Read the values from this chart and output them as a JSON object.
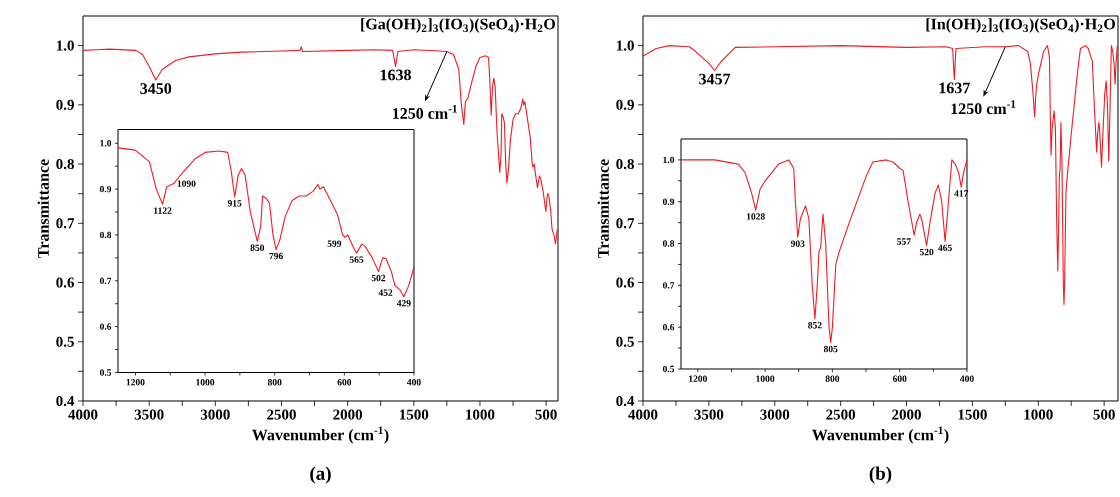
{
  "chart_data": [
    {
      "type": "line",
      "title": "[Ga(OH)$_{2}$]$_{3}$(IO$_{3}$)(SeO$_{4}$)·H$_{2}$O",
      "xlabel": "Wavenumber (cm$^{-1}$)",
      "ylabel": "Transmittance",
      "xlim": [
        4000,
        410
      ],
      "ylim": [
        0.4,
        1.05
      ],
      "xticks": [
        4000,
        {
          "value": 3750,
          "label": null
        },
        3500,
        {
          "value": 3250,
          "label": null
        },
        3000,
        {
          "value": 2750,
          "label": null
        },
        2500,
        {
          "value": 2250,
          "label": null
        },
        2000,
        {
          "value": 1750,
          "label": null
        },
        1500,
        {
          "value": 1250,
          "label": null
        },
        1000,
        {
          "value": 750,
          "label": null
        },
        500
      ],
      "yticks": [
        0.4,
        {
          "value": 0.45,
          "label": null
        },
        0.5,
        {
          "value": 0.55,
          "label": null
        },
        0.6,
        {
          "value": 0.65,
          "label": null
        },
        0.7,
        {
          "value": 0.75,
          "label": null
        },
        0.8,
        {
          "value": 0.85,
          "label": null
        },
        0.9,
        {
          "value": 0.95,
          "label": null
        },
        {
          "value": 1.0,
          "label": "1.0"
        }
      ],
      "series": [
        {
          "color": "#ee1c25",
          "x": [
            4000,
            3900,
            3800,
            3700,
            3600,
            3550,
            3500,
            3450,
            3400,
            3300,
            3200,
            3000,
            2800,
            2500,
            2360,
            2350,
            2340,
            2000,
            1800,
            1660,
            1638,
            1620,
            1500,
            1300,
            1250,
            1200,
            1160,
            1140,
            1122,
            1110,
            1090,
            1060,
            1030,
            1000,
            960,
            935,
            925,
            915,
            905,
            895,
            885,
            870,
            850,
            840,
            835,
            825,
            815,
            805,
            796,
            785,
            770,
            750,
            730,
            710,
            690,
            676,
            670,
            660,
            640,
            620,
            605,
            599,
            590,
            575,
            565,
            550,
            540,
            520,
            502,
            490,
            480,
            465,
            455,
            452,
            440,
            429,
            415
          ],
          "values": [
            0.992,
            0.993,
            0.994,
            0.993,
            0.992,
            0.985,
            0.965,
            0.942,
            0.96,
            0.975,
            0.981,
            0.986,
            0.989,
            0.991,
            0.992,
            0.998,
            0.99,
            0.992,
            0.993,
            0.992,
            0.965,
            0.99,
            0.993,
            0.991,
            0.99,
            0.985,
            0.96,
            0.9,
            0.867,
            0.905,
            0.912,
            0.94,
            0.965,
            0.98,
            0.983,
            0.98,
            0.94,
            0.883,
            0.93,
            0.945,
            0.93,
            0.85,
            0.786,
            0.82,
            0.885,
            0.88,
            0.87,
            0.8,
            0.768,
            0.79,
            0.84,
            0.875,
            0.885,
            0.885,
            0.895,
            0.91,
            0.9,
            0.905,
            0.875,
            0.845,
            0.8,
            0.795,
            0.8,
            0.775,
            0.76,
            0.78,
            0.775,
            0.75,
            0.72,
            0.75,
            0.748,
            0.72,
            0.69,
            0.688,
            0.68,
            0.665,
            0.69
          ]
        }
      ],
      "annotations": [
        {
          "text": "3450",
          "x": 3450,
          "y": 0.942
        },
        {
          "text": "1638",
          "x": 1638,
          "y": 0.965
        },
        {
          "text": "1250 cm$^{-1}$",
          "x": 1250,
          "y": 0.99
        },
        "(a)"
      ]
    },
    {
      "type": "line",
      "xlim": [
        1250,
        400
      ],
      "ylim": [
        0.5,
        1.03
      ],
      "xticks": [
        1200,
        {
          "value": 1100,
          "label": null
        },
        1000,
        {
          "value": 900,
          "label": null
        },
        800,
        {
          "value": 700,
          "label": null
        },
        600,
        {
          "value": 500,
          "label": null
        },
        400
      ],
      "yticks": [
        0.5,
        {
          "value": 0.55,
          "label": null
        },
        0.6,
        {
          "value": 0.65,
          "label": null
        },
        0.7,
        {
          "value": 0.75,
          "label": null
        },
        0.8,
        {
          "value": 0.85,
          "label": null
        },
        0.9,
        {
          "value": 0.95,
          "label": null
        },
        {
          "value": 1.0,
          "label": "1.0"
        }
      ],
      "series": [
        {
          "color": "#ee1c25",
          "x": [
            1250,
            1200,
            1160,
            1140,
            1122,
            1110,
            1090,
            1060,
            1030,
            1000,
            960,
            935,
            925,
            915,
            905,
            895,
            885,
            870,
            850,
            840,
            835,
            825,
            815,
            805,
            796,
            785,
            770,
            750,
            730,
            710,
            690,
            676,
            670,
            660,
            640,
            620,
            605,
            599,
            590,
            575,
            565,
            550,
            540,
            520,
            502,
            490,
            480,
            465,
            455,
            452,
            440,
            429,
            415,
            400
          ],
          "values": [
            0.99,
            0.985,
            0.96,
            0.9,
            0.867,
            0.905,
            0.912,
            0.94,
            0.965,
            0.98,
            0.983,
            0.98,
            0.94,
            0.883,
            0.93,
            0.945,
            0.93,
            0.85,
            0.786,
            0.82,
            0.885,
            0.88,
            0.87,
            0.8,
            0.768,
            0.79,
            0.84,
            0.875,
            0.885,
            0.885,
            0.895,
            0.91,
            0.9,
            0.905,
            0.875,
            0.845,
            0.8,
            0.795,
            0.8,
            0.775,
            0.76,
            0.78,
            0.775,
            0.75,
            0.72,
            0.75,
            0.748,
            0.72,
            0.69,
            0.688,
            0.68,
            0.665,
            0.69,
            0.73
          ]
        }
      ],
      "annotations": [
        {
          "text": "1122",
          "x": 1122,
          "y": 0.867
        },
        {
          "text": "1090",
          "x": 1090,
          "y": 0.912
        },
        {
          "text": "915",
          "x": 915,
          "y": 0.883
        },
        {
          "text": "850",
          "x": 850,
          "y": 0.786
        },
        {
          "text": "796",
          "x": 796,
          "y": 0.768
        },
        {
          "text": "599",
          "x": 599,
          "y": 0.795
        },
        {
          "text": "565",
          "x": 565,
          "y": 0.76
        },
        {
          "text": "502",
          "x": 502,
          "y": 0.72
        },
        {
          "text": "452",
          "x": 452,
          "y": 0.688
        },
        {
          "text": "429",
          "x": 429,
          "y": 0.665
        }
      ]
    },
    {
      "type": "line",
      "title": "[In(OH)$_{2}$]$_{3}$(IO$_{3}$)(SeO$_{4}$)·H$_{2}$O",
      "xlabel": "Wavenumber (cm$^{-1}$)",
      "ylabel": "Transmittance",
      "xlim": [
        4000,
        395
      ],
      "ylim": [
        0.4,
        1.05
      ],
      "xticks": [
        4000,
        {
          "value": 3750,
          "label": null
        },
        3500,
        {
          "value": 3250,
          "label": null
        },
        3000,
        {
          "value": 2750,
          "label": null
        },
        2500,
        {
          "value": 2250,
          "label": null
        },
        2000,
        {
          "value": 1750,
          "label": null
        },
        1500,
        {
          "value": 1250,
          "label": null
        },
        1000,
        {
          "value": 750,
          "label": null
        },
        500
      ],
      "yticks": [
        0.4,
        {
          "value": 0.45,
          "label": null
        },
        0.5,
        {
          "value": 0.55,
          "label": null
        },
        0.6,
        {
          "value": 0.65,
          "label": null
        },
        0.7,
        {
          "value": 0.75,
          "label": null
        },
        0.8,
        {
          "value": 0.85,
          "label": null
        },
        0.9,
        {
          "value": 0.95,
          "label": null
        },
        {
          "value": 1.0,
          "label": "1.0"
        }
      ],
      "series": [
        {
          "color": "#ee1c25",
          "x": [
            4000,
            3900,
            3800,
            3650,
            3600,
            3500,
            3457,
            3400,
            3300,
            3000,
            2500,
            2000,
            1700,
            1650,
            1637,
            1625,
            1400,
            1250,
            1150,
            1080,
            1060,
            1040,
            1028,
            1015,
            1000,
            980,
            960,
            930,
            915,
            910,
            903,
            895,
            880,
            870,
            860,
            852,
            845,
            840,
            835,
            828,
            820,
            810,
            805,
            800,
            790,
            780,
            750,
            700,
            680,
            640,
            620,
            600,
            590,
            575,
            557,
            550,
            540,
            535,
            520,
            510,
            495,
            485,
            475,
            465,
            455,
            445,
            435,
            425,
            417,
            410,
            400
          ],
          "values": [
            0.982,
            0.995,
            1.0,
            0.998,
            0.99,
            0.97,
            0.958,
            0.975,
            0.997,
            0.998,
            1.0,
            0.997,
            0.998,
            0.995,
            0.943,
            0.995,
            0.998,
            0.998,
            1.0,
            0.99,
            0.97,
            0.92,
            0.88,
            0.93,
            0.95,
            0.97,
            0.99,
            1.0,
            0.98,
            0.9,
            0.815,
            0.86,
            0.89,
            0.86,
            0.7,
            0.62,
            0.7,
            0.78,
            0.79,
            0.87,
            0.8,
            0.6,
            0.563,
            0.6,
            0.75,
            0.78,
            0.85,
            0.96,
            0.995,
            1.0,
            0.995,
            0.98,
            0.975,
            0.9,
            0.82,
            0.85,
            0.87,
            0.86,
            0.795,
            0.85,
            0.92,
            0.94,
            0.9,
            0.805,
            0.9,
            1.0,
            0.99,
            0.97,
            0.935,
            0.97,
            1.0
          ]
        }
      ],
      "annotations": [
        {
          "text": "3457",
          "x": 3457,
          "y": 0.958
        },
        {
          "text": "1637",
          "x": 1637,
          "y": 0.943
        },
        {
          "text": "1250 cm$^{-1}$",
          "x": 1250,
          "y": 0.998
        },
        "(b)"
      ]
    },
    {
      "type": "line",
      "xlim": [
        1250,
        400
      ],
      "ylim": [
        0.5,
        1.05
      ],
      "xticks": [
        1200,
        {
          "value": 1100,
          "label": null
        },
        1000,
        {
          "value": 900,
          "label": null
        },
        800,
        {
          "value": 700,
          "label": null
        },
        600,
        {
          "value": 500,
          "label": null
        },
        400
      ],
      "yticks": [
        0.5,
        {
          "value": 0.55,
          "label": null
        },
        0.6,
        {
          "value": 0.65,
          "label": null
        },
        0.7,
        {
          "value": 0.75,
          "label": null
        },
        0.8,
        {
          "value": 0.85,
          "label": null
        },
        0.9,
        {
          "value": 0.95,
          "label": null
        },
        {
          "value": 1.0,
          "label": "1.0"
        }
      ],
      "series": [
        {
          "color": "#ee1c25",
          "x": [
            1250,
            1150,
            1080,
            1060,
            1040,
            1028,
            1015,
            1000,
            980,
            960,
            930,
            915,
            910,
            903,
            895,
            880,
            870,
            860,
            852,
            845,
            840,
            835,
            828,
            820,
            810,
            805,
            800,
            790,
            780,
            750,
            700,
            680,
            640,
            620,
            600,
            590,
            575,
            557,
            550,
            540,
            535,
            520,
            510,
            495,
            485,
            475,
            465,
            455,
            445,
            435,
            425,
            417,
            410,
            400
          ],
          "values": [
            1.0,
            1.0,
            0.99,
            0.97,
            0.92,
            0.88,
            0.93,
            0.95,
            0.97,
            0.99,
            1.0,
            0.98,
            0.9,
            0.815,
            0.86,
            0.89,
            0.86,
            0.7,
            0.62,
            0.7,
            0.78,
            0.79,
            0.87,
            0.8,
            0.6,
            0.563,
            0.6,
            0.75,
            0.78,
            0.85,
            0.96,
            0.995,
            1.0,
            0.995,
            0.98,
            0.975,
            0.9,
            0.82,
            0.85,
            0.87,
            0.86,
            0.795,
            0.85,
            0.92,
            0.94,
            0.9,
            0.805,
            0.9,
            1.0,
            0.99,
            0.97,
            0.935,
            0.97,
            1.0
          ]
        }
      ],
      "annotations": [
        {
          "text": "1028",
          "x": 1028,
          "y": 0.88
        },
        {
          "text": "903",
          "x": 903,
          "y": 0.815
        },
        {
          "text": "852",
          "x": 852,
          "y": 0.62
        },
        {
          "text": "805",
          "x": 805,
          "y": 0.563
        },
        {
          "text": "557",
          "x": 557,
          "y": 0.82
        },
        {
          "text": "520",
          "x": 520,
          "y": 0.795
        },
        {
          "text": "465",
          "x": 465,
          "y": 0.805
        },
        {
          "text": "417",
          "x": 417,
          "y": 0.935
        }
      ]
    }
  ]
}
